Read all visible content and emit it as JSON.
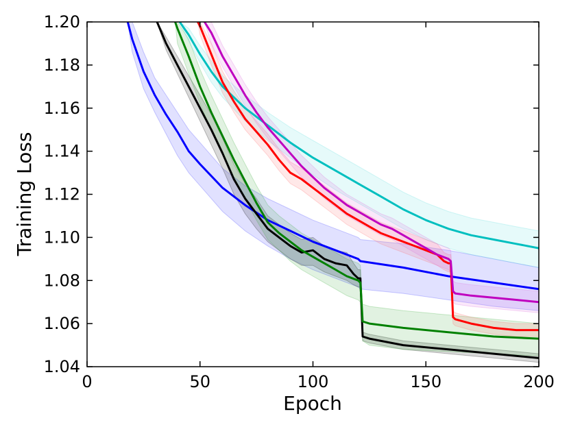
{
  "chart_data": {
    "type": "line",
    "title": "",
    "xlabel": "Epoch",
    "ylabel": "Training Loss",
    "xlim": [
      0,
      200
    ],
    "ylim": [
      1.04,
      1.2
    ],
    "xticks": [
      0,
      50,
      100,
      150,
      200
    ],
    "xtick_labels": [
      "0",
      "50",
      "100",
      "150",
      "200"
    ],
    "yticks": [
      1.04,
      1.06,
      1.08,
      1.1,
      1.12,
      1.14,
      1.16,
      1.18,
      1.2
    ],
    "ytick_labels": [
      "1.04",
      "1.06",
      "1.08",
      "1.10",
      "1.12",
      "1.14",
      "1.16",
      "1.18",
      "1.20"
    ],
    "grid": false,
    "legend": "none",
    "series": [
      {
        "name": "blue",
        "color": "#0000ff",
        "band_color": "#3333ff",
        "x": [
          18,
          20,
          25,
          30,
          35,
          40,
          45,
          50,
          60,
          70,
          80,
          90,
          100,
          110,
          120,
          121,
          140,
          160,
          180,
          200
        ],
        "y": [
          1.2,
          1.192,
          1.177,
          1.166,
          1.157,
          1.149,
          1.14,
          1.134,
          1.123,
          1.115,
          1.108,
          1.103,
          1.098,
          1.094,
          1.09,
          1.089,
          1.086,
          1.082,
          1.079,
          1.076
        ],
        "lower": [
          1.2,
          1.186,
          1.169,
          1.158,
          1.148,
          1.138,
          1.13,
          1.124,
          1.112,
          1.103,
          1.096,
          1.09,
          1.085,
          1.081,
          1.077,
          1.076,
          1.074,
          1.071,
          1.068,
          1.066
        ],
        "upper": [
          1.2,
          1.2,
          1.186,
          1.174,
          1.166,
          1.158,
          1.15,
          1.144,
          1.132,
          1.124,
          1.118,
          1.113,
          1.108,
          1.104,
          1.1,
          1.099,
          1.097,
          1.094,
          1.09,
          1.086
        ]
      },
      {
        "name": "black",
        "color": "#000000",
        "band_color": "#000000",
        "x": [
          31,
          35,
          40,
          45,
          50,
          55,
          60,
          65,
          70,
          75,
          80,
          85,
          90,
          95,
          100,
          105,
          110,
          115,
          118,
          120,
          121,
          122,
          125,
          140,
          160,
          180,
          200
        ],
        "y": [
          1.2,
          1.19,
          1.18,
          1.17,
          1.16,
          1.15,
          1.139,
          1.127,
          1.118,
          1.111,
          1.104,
          1.1,
          1.096,
          1.093,
          1.094,
          1.09,
          1.088,
          1.087,
          1.083,
          1.081,
          1.081,
          1.054,
          1.053,
          1.05,
          1.048,
          1.046,
          1.044
        ],
        "lower": [
          1.2,
          1.187,
          1.176,
          1.165,
          1.154,
          1.143,
          1.132,
          1.12,
          1.111,
          1.104,
          1.098,
          1.094,
          1.09,
          1.087,
          1.087,
          1.084,
          1.082,
          1.08,
          1.078,
          1.077,
          1.077,
          1.052,
          1.051,
          1.048,
          1.046,
          1.044,
          1.042
        ],
        "upper": [
          1.2,
          1.193,
          1.184,
          1.175,
          1.166,
          1.157,
          1.146,
          1.134,
          1.125,
          1.118,
          1.11,
          1.106,
          1.102,
          1.099,
          1.1,
          1.096,
          1.094,
          1.093,
          1.088,
          1.085,
          1.085,
          1.056,
          1.055,
          1.052,
          1.05,
          1.048,
          1.046
        ]
      },
      {
        "name": "green",
        "color": "#008000",
        "band_color": "#33aa33",
        "x": [
          39,
          40,
          45,
          50,
          55,
          60,
          65,
          70,
          75,
          80,
          85,
          90,
          95,
          100,
          105,
          110,
          115,
          120,
          121,
          122,
          125,
          140,
          160,
          180,
          200
        ],
        "y": [
          1.2,
          1.197,
          1.184,
          1.17,
          1.158,
          1.147,
          1.136,
          1.126,
          1.116,
          1.107,
          1.102,
          1.098,
          1.094,
          1.091,
          1.088,
          1.085,
          1.082,
          1.08,
          1.079,
          1.061,
          1.06,
          1.058,
          1.056,
          1.054,
          1.053
        ],
        "lower": [
          1.2,
          1.19,
          1.176,
          1.162,
          1.15,
          1.139,
          1.128,
          1.118,
          1.108,
          1.099,
          1.094,
          1.089,
          1.085,
          1.082,
          1.079,
          1.076,
          1.073,
          1.071,
          1.07,
          1.052,
          1.05,
          1.048,
          1.047,
          1.046,
          1.045
        ],
        "upper": [
          1.2,
          1.2,
          1.192,
          1.178,
          1.166,
          1.155,
          1.144,
          1.134,
          1.124,
          1.115,
          1.11,
          1.106,
          1.102,
          1.099,
          1.096,
          1.093,
          1.09,
          1.088,
          1.087,
          1.069,
          1.068,
          1.066,
          1.064,
          1.062,
          1.06
        ]
      },
      {
        "name": "cyan",
        "color": "#00bfbf",
        "band_color": "#55dddd",
        "x": [
          41,
          45,
          50,
          55,
          60,
          70,
          80,
          90,
          100,
          110,
          120,
          130,
          140,
          150,
          160,
          170,
          180,
          190,
          200
        ],
        "y": [
          1.2,
          1.194,
          1.185,
          1.177,
          1.17,
          1.16,
          1.152,
          1.144,
          1.137,
          1.131,
          1.125,
          1.119,
          1.113,
          1.108,
          1.104,
          1.101,
          1.099,
          1.097,
          1.095
        ],
        "lower": [
          1.2,
          1.191,
          1.181,
          1.172,
          1.165,
          1.154,
          1.145,
          1.137,
          1.129,
          1.122,
          1.116,
          1.11,
          1.104,
          1.099,
          1.095,
          1.092,
          1.09,
          1.088,
          1.086
        ],
        "upper": [
          1.2,
          1.197,
          1.189,
          1.182,
          1.175,
          1.166,
          1.158,
          1.151,
          1.145,
          1.139,
          1.133,
          1.127,
          1.121,
          1.116,
          1.112,
          1.109,
          1.107,
          1.105,
          1.103
        ]
      },
      {
        "name": "red",
        "color": "#ff0000",
        "band_color": "#ff6666",
        "x": [
          49,
          50,
          55,
          60,
          65,
          70,
          75,
          80,
          85,
          90,
          95,
          100,
          105,
          110,
          115,
          120,
          125,
          130,
          135,
          140,
          145,
          150,
          155,
          158,
          160,
          161,
          162,
          163,
          170,
          180,
          190,
          200
        ],
        "y": [
          1.2,
          1.198,
          1.185,
          1.172,
          1.163,
          1.155,
          1.149,
          1.143,
          1.136,
          1.13,
          1.127,
          1.123,
          1.119,
          1.115,
          1.111,
          1.108,
          1.105,
          1.102,
          1.1,
          1.098,
          1.096,
          1.094,
          1.092,
          1.089,
          1.088,
          1.088,
          1.063,
          1.062,
          1.06,
          1.058,
          1.057,
          1.057
        ],
        "lower": [
          1.2,
          1.194,
          1.18,
          1.167,
          1.158,
          1.15,
          1.144,
          1.138,
          1.131,
          1.125,
          1.122,
          1.118,
          1.114,
          1.11,
          1.106,
          1.103,
          1.1,
          1.097,
          1.095,
          1.093,
          1.091,
          1.089,
          1.087,
          1.085,
          1.084,
          1.084,
          1.06,
          1.059,
          1.057,
          1.055,
          1.054,
          1.054
        ],
        "upper": [
          1.2,
          1.2,
          1.19,
          1.177,
          1.168,
          1.16,
          1.154,
          1.148,
          1.141,
          1.135,
          1.132,
          1.128,
          1.124,
          1.12,
          1.116,
          1.113,
          1.11,
          1.107,
          1.105,
          1.103,
          1.101,
          1.099,
          1.097,
          1.093,
          1.092,
          1.092,
          1.066,
          1.065,
          1.063,
          1.061,
          1.06,
          1.06
        ]
      },
      {
        "name": "magenta",
        "color": "#bf00bf",
        "band_color": "#dd66dd",
        "x": [
          52,
          55,
          60,
          65,
          70,
          75,
          80,
          85,
          90,
          95,
          100,
          105,
          110,
          115,
          120,
          125,
          130,
          135,
          140,
          145,
          150,
          155,
          160,
          161,
          162,
          163,
          170,
          180,
          190,
          200
        ],
        "y": [
          1.2,
          1.195,
          1.184,
          1.175,
          1.166,
          1.158,
          1.151,
          1.145,
          1.139,
          1.133,
          1.128,
          1.123,
          1.119,
          1.115,
          1.112,
          1.109,
          1.106,
          1.104,
          1.101,
          1.098,
          1.095,
          1.092,
          1.09,
          1.089,
          1.075,
          1.074,
          1.073,
          1.072,
          1.071,
          1.07
        ],
        "lower": [
          1.2,
          1.19,
          1.179,
          1.17,
          1.161,
          1.153,
          1.146,
          1.14,
          1.134,
          1.128,
          1.123,
          1.118,
          1.114,
          1.11,
          1.107,
          1.104,
          1.101,
          1.099,
          1.096,
          1.093,
          1.09,
          1.087,
          1.085,
          1.084,
          1.07,
          1.069,
          1.068,
          1.067,
          1.066,
          1.065
        ],
        "upper": [
          1.2,
          1.2,
          1.189,
          1.18,
          1.171,
          1.163,
          1.156,
          1.15,
          1.144,
          1.138,
          1.133,
          1.128,
          1.124,
          1.12,
          1.117,
          1.114,
          1.111,
          1.109,
          1.106,
          1.103,
          1.1,
          1.097,
          1.095,
          1.094,
          1.08,
          1.079,
          1.078,
          1.077,
          1.076,
          1.075
        ]
      }
    ]
  }
}
